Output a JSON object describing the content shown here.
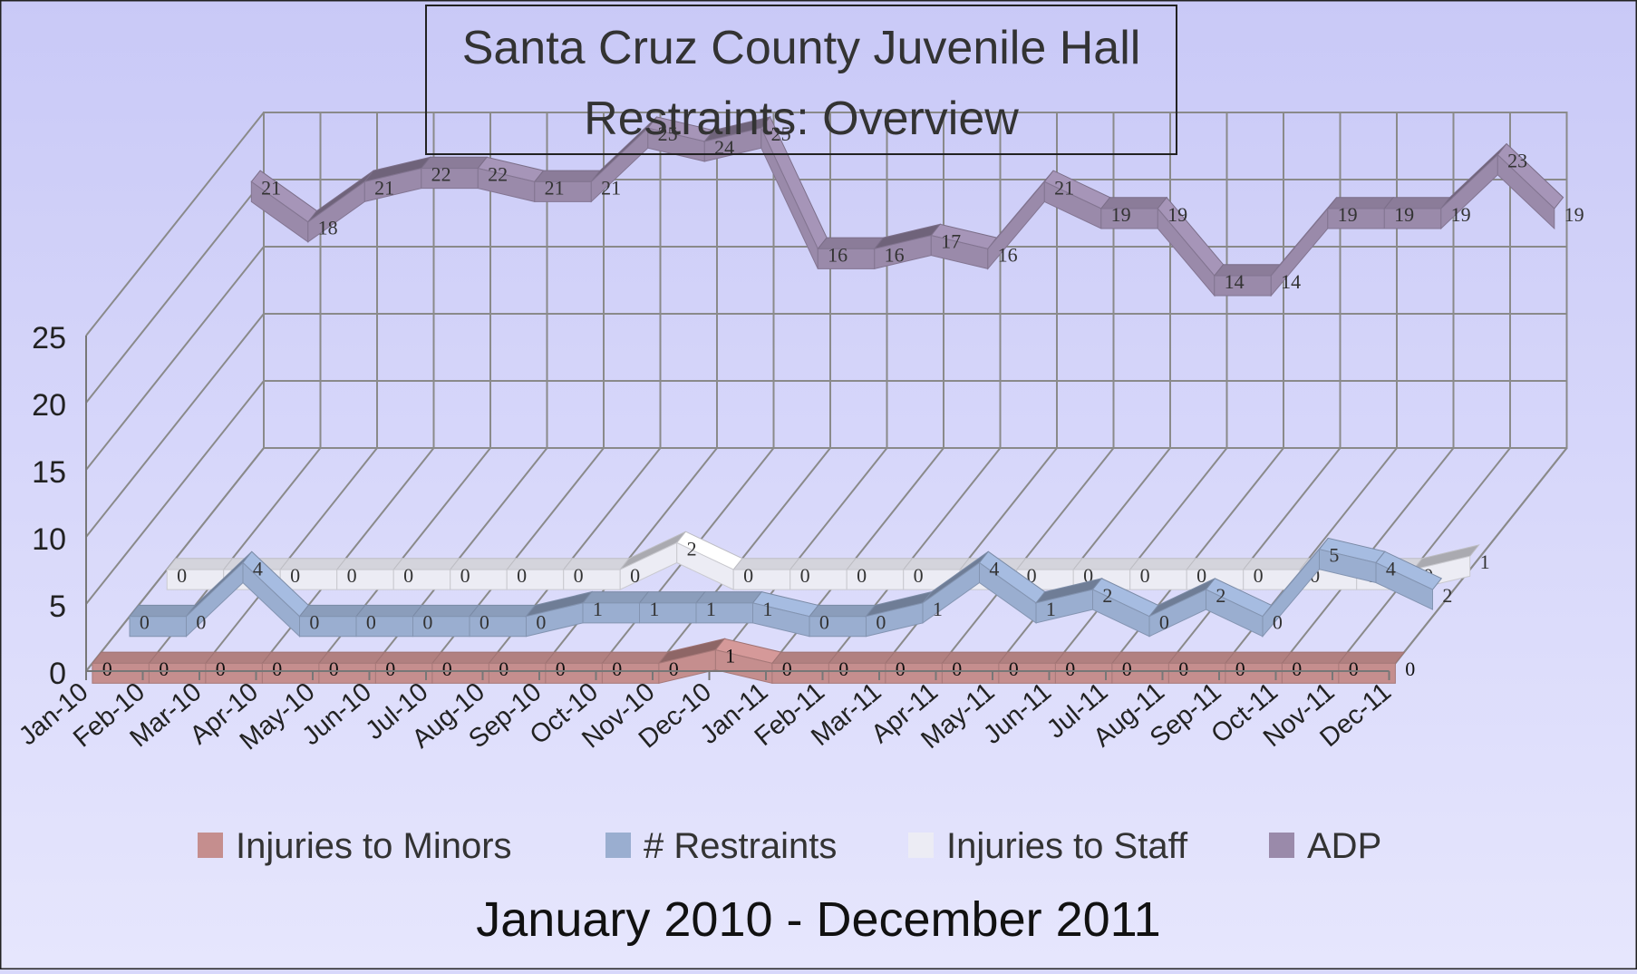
{
  "chart_data": {
    "type": "line",
    "title_line1": "Santa Cruz County Juvenile Hall",
    "title_line2": "Restraints: Overview",
    "subtitle": "January 2010 - December 2011",
    "categories": [
      "Jan-10",
      "Feb-10",
      "Mar-10",
      "Apr-10",
      "May-10",
      "Jun-10",
      "Jul-10",
      "Aug-10",
      "Sep-10",
      "Oct-10",
      "Nov-10",
      "Dec-10",
      "Jan-11",
      "Feb-11",
      "Mar-11",
      "Apr-11",
      "May-11",
      "Jun-11",
      "Jul-11",
      "Aug-11",
      "Sep-11",
      "Oct-11",
      "Nov-11",
      "Dec-11"
    ],
    "y_ticks": [
      "0",
      "5",
      "10",
      "15",
      "20",
      "25"
    ],
    "ylim": [
      0,
      25
    ],
    "grid": true,
    "legend_position": "bottom",
    "series": [
      {
        "name": "Injuries to Minors",
        "color": "#c58e8e",
        "values": [
          0,
          0,
          0,
          0,
          0,
          0,
          0,
          0,
          0,
          0,
          0,
          1,
          0,
          0,
          0,
          0,
          0,
          0,
          0,
          0,
          0,
          0,
          0,
          0
        ]
      },
      {
        "name": "# Restraints",
        "color": "#9aaed0",
        "values": [
          0,
          0,
          4,
          0,
          0,
          0,
          0,
          0,
          1,
          1,
          1,
          1,
          0,
          0,
          1,
          4,
          1,
          2,
          0,
          2,
          0,
          5,
          4,
          2
        ]
      },
      {
        "name": "Injuries to Staff",
        "color": "#ececf4",
        "values": [
          0,
          0,
          0,
          0,
          0,
          0,
          0,
          0,
          0,
          2,
          0,
          0,
          0,
          0,
          0,
          0,
          0,
          0,
          0,
          0,
          0,
          0,
          0,
          1
        ]
      },
      {
        "name": "ADP",
        "color": "#9a8aaa",
        "values": [
          21,
          18,
          21,
          22,
          22,
          21,
          21,
          25,
          24,
          25,
          16,
          16,
          17,
          16,
          21,
          19,
          19,
          14,
          14,
          19,
          19,
          19,
          23,
          19
        ]
      }
    ]
  }
}
